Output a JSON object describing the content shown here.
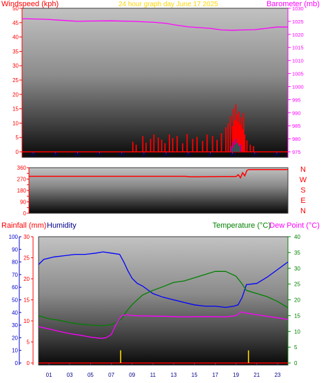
{
  "chart_data": [
    {
      "type": "line",
      "title": "24 hour graph day   June 17 2025",
      "left_axis_label": "Windspeed (kph)",
      "right_axis_label": "Barometer (mb)",
      "left_ylim": [
        0,
        50
      ],
      "left_ticks": [
        0,
        5,
        10,
        15,
        20,
        25,
        30,
        35,
        40,
        45,
        50
      ],
      "right_ylim": [
        975,
        1030
      ],
      "right_ticks": [
        975,
        980,
        985,
        990,
        995,
        1000,
        1005,
        1010,
        1015,
        1020,
        1025,
        1030
      ],
      "xlim": [
        0,
        24
      ],
      "x_tick_labels": [
        "01",
        "03",
        "05",
        "07",
        "09",
        "11",
        "13",
        "15",
        "17",
        "19",
        "21",
        "23"
      ],
      "series": [
        {
          "name": "Barometer",
          "axis": "right",
          "color": "#ff00ff",
          "x": [
            0,
            2,
            4,
            5,
            6,
            8,
            10,
            12,
            13,
            14,
            15,
            16,
            17,
            18,
            19,
            20,
            21,
            22,
            23,
            24
          ],
          "y": [
            1026.0,
            1025.8,
            1025.3,
            1025.0,
            1025.1,
            1025.2,
            1025.0,
            1024.6,
            1024.2,
            1023.5,
            1022.9,
            1022.6,
            1022.3,
            1021.7,
            1021.6,
            1021.7,
            1021.8,
            1022.3,
            1022.8,
            1022.8
          ]
        },
        {
          "name": "Windspeed",
          "axis": "left",
          "color": "#ff0000",
          "type": "bar",
          "x": [
            10.0,
            10.3,
            10.9,
            11.2,
            11.6,
            11.9,
            12.3,
            12.6,
            12.9,
            13.3,
            13.6,
            14.0,
            14.5,
            14.9,
            15.4,
            15.8,
            16.3,
            16.7,
            17.2,
            17.6,
            18.0,
            18.4,
            18.6,
            18.8,
            19.0,
            19.1,
            19.2,
            19.3,
            19.4,
            19.5,
            19.6,
            19.7,
            19.8,
            19.9,
            20.0,
            20.1,
            20.3,
            20.6,
            20.9
          ],
          "y": [
            3.5,
            2.5,
            5.5,
            3.2,
            4.5,
            6.0,
            5.0,
            4.2,
            3.0,
            6.0,
            4.8,
            5.5,
            3.0,
            6.2,
            4.5,
            5.2,
            3.8,
            6.0,
            5.5,
            4.2,
            6.5,
            8.5,
            10.0,
            12.5,
            9.0,
            15.0,
            11.0,
            16.5,
            13.0,
            10.5,
            14.0,
            9.5,
            12.0,
            8.0,
            13.5,
            6.0,
            4.0,
            2.5,
            2.0
          ]
        },
        {
          "name": "Gust",
          "axis": "left",
          "color": "#9400d3",
          "type": "bar",
          "x": [
            18.9,
            19.1,
            19.3,
            19.5,
            19.7
          ],
          "y": [
            2.0,
            3.5,
            4.5,
            3.0,
            2.5
          ]
        },
        {
          "name": "Average",
          "axis": "left",
          "color": "#008000",
          "type": "bar",
          "x": [
            19.0,
            19.2,
            19.4,
            19.6
          ],
          "y": [
            1.5,
            2.5,
            3.0,
            2.0
          ]
        }
      ]
    },
    {
      "type": "line",
      "right_labels": [
        "N",
        "W",
        "S",
        "E",
        "N"
      ],
      "ylim": [
        0,
        360
      ],
      "ticks": [
        0,
        45,
        90,
        135,
        180,
        225,
        270,
        315,
        360
      ],
      "tick_labels": [
        "0",
        "45",
        "90",
        "135",
        "180",
        "225",
        "270",
        "315",
        "360"
      ],
      "xlim": [
        0,
        24
      ],
      "series": [
        {
          "name": "Wind direction",
          "color": "#ff0000",
          "x": [
            0,
            8,
            14.5,
            15,
            18,
            19.2,
            19.4,
            19.6,
            19.8,
            20.0,
            20.2,
            20.4,
            24
          ],
          "y": [
            292,
            292,
            292,
            288,
            290,
            290,
            305,
            280,
            320,
            295,
            340,
            345,
            345
          ]
        }
      ]
    },
    {
      "type": "line",
      "rainfall_label": "Rainfall (mm)",
      "humidity_label": "Humidity",
      "temp_label": "Temperature (°C)",
      "dewpoint_label": "Dew Point (°C)",
      "humidity_ylim": [
        0,
        100
      ],
      "humidity_ticks": [
        0,
        10,
        20,
        30,
        40,
        50,
        60,
        70,
        80,
        90,
        100
      ],
      "rain_ylim": [
        0,
        30
      ],
      "rain_ticks": [
        0,
        5,
        10,
        15,
        20,
        25,
        30
      ],
      "temp_ylim": [
        0,
        40
      ],
      "temp_ticks": [
        0,
        5,
        10,
        15,
        20,
        25,
        30,
        35,
        40
      ],
      "xlim": [
        0,
        24
      ],
      "x_tick_labels": [
        "01",
        "03",
        "05",
        "07",
        "09",
        "11",
        "13",
        "15",
        "17",
        "19",
        "21",
        "23"
      ],
      "series": [
        {
          "name": "Humidity",
          "axis": "humidity",
          "color": "#0000ff",
          "x": [
            0,
            0.5,
            1.5,
            2.5,
            3.5,
            4.5,
            5.5,
            6.2,
            7.0,
            7.8,
            8.2,
            8.6,
            9.0,
            9.5,
            10.0,
            10.5,
            11.0,
            12.0,
            13.0,
            14.0,
            15.0,
            16.0,
            17.0,
            18.0,
            18.8,
            19.2,
            19.6,
            20.0,
            21.0,
            22.0,
            23.0,
            24.0
          ],
          "y": [
            78,
            82,
            84,
            85,
            86,
            86,
            87,
            88,
            87,
            86,
            80,
            73,
            67,
            63,
            61,
            58,
            55,
            52,
            50,
            48,
            46,
            45,
            45,
            44,
            45,
            46,
            52,
            62,
            63,
            68,
            74,
            80
          ]
        },
        {
          "name": "Temperature",
          "axis": "temp",
          "color": "#008000",
          "x": [
            0,
            1,
            2,
            3,
            4,
            5,
            6,
            6.8,
            7.5,
            8.0,
            8.5,
            9.0,
            10.0,
            11.0,
            12.0,
            13.0,
            14.0,
            15.0,
            16.0,
            17.0,
            18.0,
            19.0,
            19.6,
            20.0,
            21.0,
            22.0,
            23.0,
            24.0
          ],
          "y": [
            15,
            14,
            13.5,
            12.8,
            12.3,
            12.0,
            11.8,
            12.0,
            12.8,
            14.0,
            16.5,
            18.5,
            21.5,
            23.0,
            24.2,
            25.5,
            26.0,
            27.0,
            28.0,
            29.0,
            29.0,
            27.5,
            25.0,
            23.0,
            22.0,
            21.0,
            19.5,
            17.5
          ]
        },
        {
          "name": "Dew Point",
          "axis": "temp",
          "color": "#ff00ff",
          "x": [
            0,
            1,
            2,
            3,
            4,
            5,
            6,
            6.5,
            7.0,
            7.5,
            8.0,
            8.5,
            9.0,
            10.0,
            12.0,
            14.0,
            16.0,
            18.0,
            19.0,
            19.5,
            20.0,
            21.0,
            22.0,
            23.0,
            24.0
          ],
          "y": [
            11.5,
            10.8,
            10.0,
            9.3,
            8.8,
            8.2,
            7.8,
            8.0,
            9.0,
            12.5,
            15.0,
            15.3,
            15.0,
            14.9,
            14.8,
            14.6,
            14.7,
            14.6,
            15.0,
            16.2,
            15.8,
            15.3,
            14.8,
            14.3,
            13.8
          ]
        },
        {
          "name": "Rainfall",
          "axis": "rain",
          "color": "#ffd700",
          "type": "bar",
          "x": [
            7.9,
            20.2
          ],
          "y": [
            3.0,
            3.0
          ]
        }
      ]
    }
  ]
}
